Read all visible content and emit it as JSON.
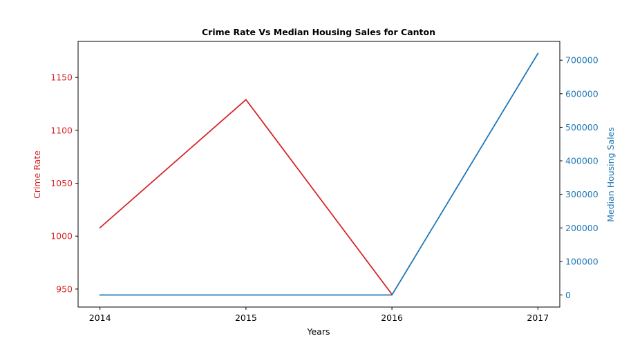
{
  "chart_data": {
    "type": "line",
    "title": "Crime Rate Vs Median Housing Sales for Canton",
    "xlabel": "Years",
    "ylabel_left": "Crime Rate",
    "ylabel_right": "Median Housing Sales",
    "x": [
      "2014",
      "2015",
      "2016",
      "2017"
    ],
    "series": [
      {
        "axis": "left",
        "color": "#d62728",
        "values": [
          1008,
          1129,
          945,
          null
        ]
      },
      {
        "axis": "right",
        "color": "#1f77b4",
        "values": [
          0,
          0,
          0,
          720000
        ]
      }
    ],
    "left_axis": {
      "ylim": [
        933,
        1184
      ],
      "ticks": [
        950,
        1000,
        1050,
        1100,
        1150
      ],
      "color": "#d62728"
    },
    "right_axis": {
      "ylim": [
        -36000,
        756000
      ],
      "ticks": [
        0,
        100000,
        200000,
        300000,
        400000,
        500000,
        600000,
        700000
      ],
      "color": "#1f77b4"
    },
    "xlim": [
      -0.15,
      3.15
    ],
    "grid": false,
    "legend": "none"
  }
}
